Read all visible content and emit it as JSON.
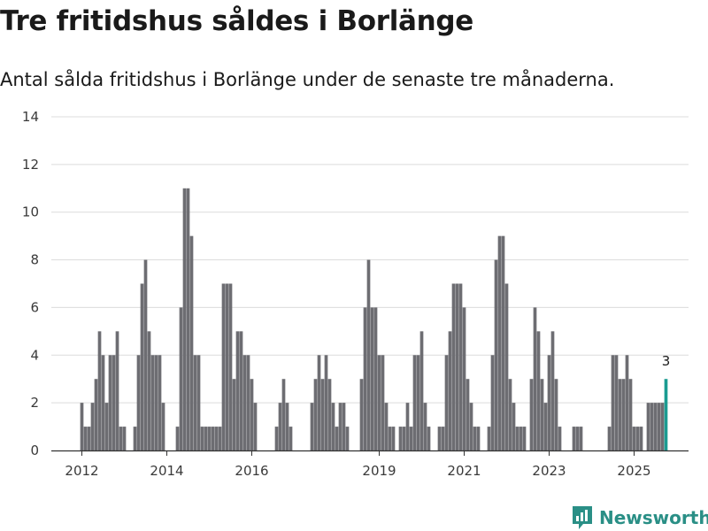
{
  "header": {
    "title": "Tre fritidshus såldes i Borlänge",
    "subtitle": "Antal sålda fritidshus i Borlänge under de senaste tre månaderna."
  },
  "brand": {
    "name": "Newsworthy"
  },
  "colors": {
    "bar": "#6d6d72",
    "highlight": "#1a9b91",
    "grid": "#dcdcdc",
    "axis": "#333333"
  },
  "chart_data": {
    "type": "bar",
    "title": "Tre fritidshus såldes i Borlänge",
    "subtitle": "Antal sålda fritidshus i Borlänge under de senaste tre månaderna.",
    "xlabel": "",
    "ylabel": "",
    "ylim": [
      0,
      14
    ],
    "yticks": [
      0,
      2,
      4,
      6,
      8,
      10,
      12,
      14
    ],
    "xticks": [
      {
        "label": "2012",
        "index": 0
      },
      {
        "label": "2014",
        "index": 24
      },
      {
        "label": "2016",
        "index": 48
      },
      {
        "label": "2019",
        "index": 84
      },
      {
        "label": "2021",
        "index": 108
      },
      {
        "label": "2023",
        "index": 132
      },
      {
        "label": "2025",
        "index": 156
      }
    ],
    "start": "2012-01",
    "values": [
      2,
      1,
      1,
      2,
      3,
      5,
      4,
      2,
      4,
      4,
      5,
      1,
      1,
      null,
      null,
      1,
      4,
      7,
      8,
      5,
      4,
      4,
      4,
      2,
      null,
      null,
      null,
      1,
      6,
      11,
      11,
      9,
      4,
      4,
      1,
      1,
      1,
      1,
      1,
      1,
      7,
      7,
      7,
      3,
      5,
      5,
      4,
      4,
      3,
      2,
      null,
      null,
      null,
      null,
      null,
      1,
      2,
      3,
      2,
      1,
      null,
      null,
      null,
      null,
      null,
      2,
      3,
      4,
      3,
      4,
      3,
      2,
      1,
      2,
      2,
      1,
      null,
      null,
      null,
      3,
      6,
      8,
      6,
      6,
      4,
      4,
      2,
      1,
      1,
      null,
      1,
      1,
      2,
      1,
      4,
      4,
      5,
      2,
      1,
      null,
      null,
      1,
      1,
      4,
      5,
      7,
      7,
      7,
      6,
      3,
      2,
      1,
      1,
      null,
      null,
      1,
      4,
      8,
      9,
      9,
      7,
      3,
      2,
      1,
      1,
      1,
      null,
      3,
      6,
      5,
      3,
      2,
      4,
      5,
      3,
      1,
      null,
      null,
      null,
      1,
      1,
      1,
      null,
      null,
      null,
      null,
      null,
      null,
      null,
      1,
      4,
      4,
      3,
      3,
      4,
      3,
      1,
      1,
      1,
      null,
      2,
      2,
      2,
      2,
      2,
      3
    ],
    "highlight_index": 165,
    "annotation": {
      "index": 165,
      "label": "3"
    }
  }
}
